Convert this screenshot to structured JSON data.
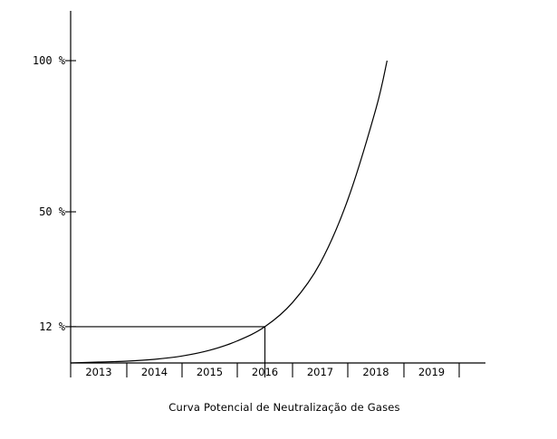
{
  "chart_data": {
    "type": "line",
    "title": "Curva Potencial de Neutralização de Gases",
    "xlabel": "",
    "ylabel": "",
    "categories": [
      "2013",
      "2014",
      "2015",
      "2016",
      "2017",
      "2018",
      "2019"
    ],
    "y_ticks": [
      {
        "value": 100,
        "label": "100 %"
      },
      {
        "value": 50,
        "label": "50 %"
      },
      {
        "value": 12,
        "label": "12 %"
      }
    ],
    "ylim": [
      0,
      100
    ],
    "grid": false,
    "series": [
      {
        "values": [
          {
            "x": 2013.0,
            "y": 0
          },
          {
            "x": 2013.5,
            "y": 0.3
          },
          {
            "x": 2014.0,
            "y": 0.6
          },
          {
            "x": 2014.5,
            "y": 1.2
          },
          {
            "x": 2015.0,
            "y": 2.3
          },
          {
            "x": 2015.5,
            "y": 4.2
          },
          {
            "x": 2016.0,
            "y": 7.3
          },
          {
            "x": 2016.5,
            "y": 12
          },
          {
            "x": 2017.0,
            "y": 20
          },
          {
            "x": 2017.5,
            "y": 33
          },
          {
            "x": 2018.0,
            "y": 54
          },
          {
            "x": 2018.5,
            "y": 84
          },
          {
            "x": 2018.7,
            "y": 100
          }
        ]
      }
    ],
    "reference": {
      "x": 2016.5,
      "y": 12
    }
  }
}
